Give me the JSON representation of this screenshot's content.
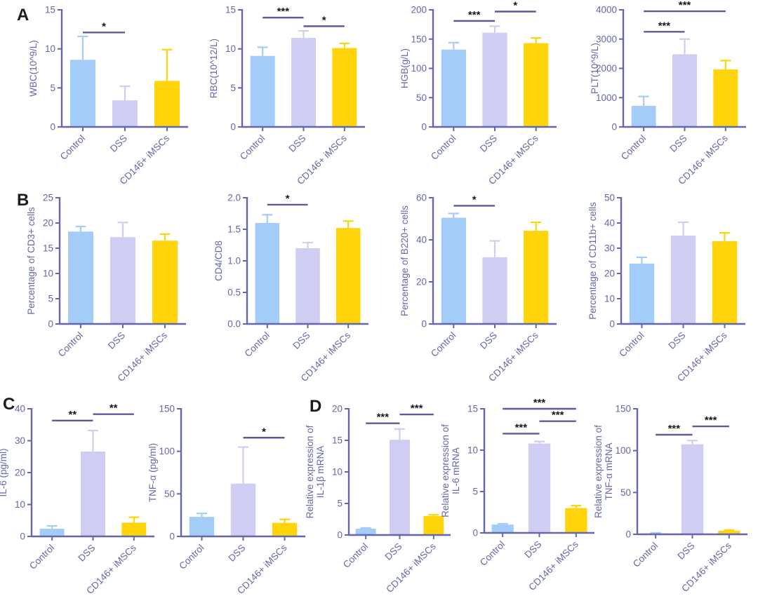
{
  "figure": {
    "background": "#ffffff",
    "bar_colors": [
      "#A3CDF8",
      "#CFCDF2",
      "#FFD40A"
    ],
    "axis_color": "#6467AB",
    "tick_text_color": "#6467AB",
    "sig_line_color": "#5A5C99",
    "sig_text_color": "#161616",
    "categories": [
      "Control",
      "DSS",
      "CD146+ iMSCs"
    ]
  },
  "panels": [
    {
      "label": "A"
    },
    {
      "label": "B"
    },
    {
      "label": "C"
    },
    {
      "label": "D"
    }
  ],
  "chart_data": [
    {
      "id": "wbc",
      "panel": "A",
      "type": "bar",
      "ylabel_lines": [
        "WBC(10^9/L)"
      ],
      "ylim": [
        0,
        15
      ],
      "yticks": [
        0,
        5,
        10,
        15
      ],
      "ytick_labels": [
        "0",
        "5",
        "10",
        "15"
      ],
      "categories": [
        "Control",
        "DSS",
        "CD146+ iMSCs"
      ],
      "values": [
        8.6,
        3.4,
        5.9
      ],
      "errors_up": [
        3.0,
        1.8,
        4.0
      ],
      "significance": [
        {
          "from": 0,
          "to": 1,
          "label": "*",
          "y": 12.1
        }
      ]
    },
    {
      "id": "rbc",
      "panel": "A",
      "type": "bar",
      "ylabel_lines": [
        "RBC(10^12/L)"
      ],
      "ylim": [
        0,
        15
      ],
      "yticks": [
        0,
        5,
        10,
        15
      ],
      "ytick_labels": [
        "0",
        "5",
        "10",
        "15"
      ],
      "categories": [
        "Control",
        "DSS",
        "CD146+ iMSCs"
      ],
      "values": [
        9.1,
        11.4,
        10.1
      ],
      "errors_up": [
        1.1,
        0.9,
        0.6
      ],
      "significance": [
        {
          "from": 0,
          "to": 1,
          "label": "***",
          "y": 14.0
        },
        {
          "from": 1,
          "to": 2,
          "label": "*",
          "y": 12.9
        }
      ]
    },
    {
      "id": "hgb",
      "panel": "A",
      "type": "bar",
      "ylabel_lines": [
        "HGB(g/L)"
      ],
      "ylim": [
        0,
        200
      ],
      "yticks": [
        0,
        50,
        100,
        150,
        200
      ],
      "ytick_labels": [
        "0",
        "50",
        "100",
        "150",
        "200"
      ],
      "categories": [
        "Control",
        "DSS",
        "CD146+ iMSCs"
      ],
      "values": [
        132,
        161,
        143
      ],
      "errors_up": [
        12,
        11,
        9
      ],
      "significance": [
        {
          "from": 0,
          "to": 1,
          "label": "***",
          "y": 181
        },
        {
          "from": 1,
          "to": 2,
          "label": "*",
          "y": 197
        }
      ]
    },
    {
      "id": "plt",
      "panel": "A",
      "type": "bar",
      "ylabel_lines": [
        "PLT(10^9/L)"
      ],
      "ylim": [
        0,
        4000
      ],
      "yticks": [
        0,
        1000,
        2000,
        3000,
        4000
      ],
      "ytick_labels": [
        "0",
        "1000",
        "2000",
        "3000",
        "4000"
      ],
      "categories": [
        "Control",
        "DSS",
        "CD146+ iMSCs"
      ],
      "values": [
        720,
        2480,
        1965
      ],
      "errors_up": [
        320,
        520,
        300
      ],
      "significance": [
        {
          "from": 0,
          "to": 1,
          "label": "***",
          "y": 3250
        },
        {
          "from": 0,
          "to": 2,
          "label": "***",
          "y": 3950
        }
      ]
    },
    {
      "id": "cd3",
      "panel": "B",
      "type": "bar",
      "ylabel_lines": [
        "Percentage of CD3+ cells"
      ],
      "ylim": [
        0,
        25
      ],
      "yticks": [
        0,
        5,
        10,
        15,
        20,
        25
      ],
      "ytick_labels": [
        "0",
        "5",
        "10",
        "15",
        "20",
        "25"
      ],
      "categories": [
        "Control",
        "DSS",
        "CD146+ iMSCs"
      ],
      "values": [
        18.3,
        17.2,
        16.5
      ],
      "errors_up": [
        1.0,
        2.9,
        1.3
      ],
      "significance": []
    },
    {
      "id": "cd4cd8",
      "panel": "B",
      "type": "bar",
      "ylabel_lines": [
        "CD4/CD8"
      ],
      "ylim": [
        0,
        2.0
      ],
      "yticks": [
        0,
        0.5,
        1.0,
        1.5,
        2.0
      ],
      "ytick_labels": [
        "0.0",
        "0.5",
        "1.0",
        "1.5",
        "2.0"
      ],
      "categories": [
        "Control",
        "DSS",
        "CD146+ iMSCs"
      ],
      "values": [
        1.6,
        1.2,
        1.52
      ],
      "errors_up": [
        0.13,
        0.09,
        0.11
      ],
      "significance": [
        {
          "from": 0,
          "to": 1,
          "label": "*",
          "y": 1.89
        }
      ]
    },
    {
      "id": "b220",
      "panel": "B",
      "type": "bar",
      "ylabel_lines": [
        "Percentage of B220+ cells"
      ],
      "ylim": [
        0,
        60
      ],
      "yticks": [
        0,
        20,
        40,
        60
      ],
      "ytick_labels": [
        "0",
        "20",
        "40",
        "60"
      ],
      "categories": [
        "Control",
        "DSS",
        "CD146+ iMSCs"
      ],
      "values": [
        50.5,
        31.7,
        44.3
      ],
      "errors_up": [
        2.0,
        7.8,
        4.0
      ],
      "significance": [
        {
          "from": 0,
          "to": 1,
          "label": "*",
          "y": 56.2
        }
      ]
    },
    {
      "id": "cd11b",
      "panel": "B",
      "type": "bar",
      "ylabel_lines": [
        "Percentage of CD11b+ cells"
      ],
      "ylim": [
        0,
        50
      ],
      "yticks": [
        0,
        10,
        20,
        30,
        40,
        50
      ],
      "ytick_labels": [
        "0",
        "10",
        "20",
        "30",
        "40",
        "50"
      ],
      "categories": [
        "Control",
        "DSS",
        "CD146+ iMSCs"
      ],
      "values": [
        23.9,
        35.0,
        32.8
      ],
      "errors_up": [
        2.5,
        5.3,
        3.3
      ],
      "significance": []
    },
    {
      "id": "il6-protein",
      "panel": "C",
      "type": "bar",
      "ylabel_lines": [
        "IL-6 (pg/ml)"
      ],
      "ylim": [
        0,
        40
      ],
      "yticks": [
        0,
        10,
        20,
        30,
        40
      ],
      "ytick_labels": [
        "0",
        "10",
        "20",
        "30",
        "40"
      ],
      "categories": [
        "Control",
        "DSS",
        "CD146+ iMSCs"
      ],
      "values": [
        2.4,
        26.6,
        4.3
      ],
      "errors_up": [
        0.9,
        6.6,
        1.7
      ],
      "significance": [
        {
          "from": 0,
          "to": 1,
          "label": "**",
          "y": 36.3
        },
        {
          "from": 1,
          "to": 2,
          "label": "**",
          "y": 38.3
        }
      ]
    },
    {
      "id": "tnfa-protein",
      "panel": "C",
      "type": "bar",
      "ylabel_lines": [
        "TNF-α  (pg/ml)"
      ],
      "ylim": [
        0,
        150
      ],
      "yticks": [
        0,
        50,
        100,
        150
      ],
      "ytick_labels": [
        "0",
        "50",
        "100",
        "150"
      ],
      "categories": [
        "Control",
        "DSS",
        "CD146+ iMSCs"
      ],
      "values": [
        23,
        62,
        16
      ],
      "errors_up": [
        4,
        43,
        4
      ],
      "significance": [
        {
          "from": 1,
          "to": 2,
          "label": "*",
          "y": 116
        }
      ]
    },
    {
      "id": "il1b-mrna",
      "panel": "D",
      "type": "bar",
      "ylabel_lines": [
        "Relative expression of",
        "IL-1β mRNA"
      ],
      "ylim": [
        0,
        20
      ],
      "yticks": [
        0,
        5,
        10,
        15,
        20
      ],
      "ytick_labels": [
        "0",
        "5",
        "10",
        "15",
        "20"
      ],
      "categories": [
        "Control",
        "DSS",
        "CD146+ iMSCs"
      ],
      "values": [
        1.0,
        15.1,
        3.0
      ],
      "errors_up": [
        0.12,
        1.7,
        0.2
      ],
      "significance": [
        {
          "from": 0,
          "to": 1,
          "label": "***",
          "y": 17.7
        },
        {
          "from": 1,
          "to": 2,
          "label": "***",
          "y": 19.1
        }
      ]
    },
    {
      "id": "il6-mrna",
      "panel": "D",
      "type": "bar",
      "ylabel_lines": [
        "Relative expression of",
        "IL-6 mRNA"
      ],
      "ylim": [
        0,
        15
      ],
      "yticks": [
        0,
        5,
        10,
        15
      ],
      "ytick_labels": [
        "0",
        "5",
        "10",
        "15"
      ],
      "categories": [
        "Control",
        "DSS",
        "CD146+ iMSCs"
      ],
      "values": [
        1.0,
        10.8,
        3.0
      ],
      "errors_up": [
        0.1,
        0.25,
        0.3
      ],
      "significance": [
        {
          "from": 0,
          "to": 1,
          "label": "***",
          "y": 12.0
        },
        {
          "from": 1,
          "to": 2,
          "label": "***",
          "y": 13.5
        },
        {
          "from": 0,
          "to": 2,
          "label": "***",
          "y": 15.0
        }
      ]
    },
    {
      "id": "tnfa-mrna",
      "panel": "D",
      "type": "bar",
      "ylabel_lines": [
        "Relative expression of",
        "TNF-α mRNA"
      ],
      "ylim": [
        0,
        150
      ],
      "yticks": [
        0,
        50,
        100,
        150
      ],
      "ytick_labels": [
        "0",
        "50",
        "100",
        "150"
      ],
      "categories": [
        "Control",
        "DSS",
        "CD146+ iMSCs"
      ],
      "values": [
        1.2,
        107.5,
        4.2
      ],
      "errors_up": [
        0.5,
        4.5,
        0.9
      ],
      "significance": [
        {
          "from": 0,
          "to": 1,
          "label": "***",
          "y": 119
        },
        {
          "from": 1,
          "to": 2,
          "label": "***",
          "y": 129
        }
      ]
    }
  ]
}
